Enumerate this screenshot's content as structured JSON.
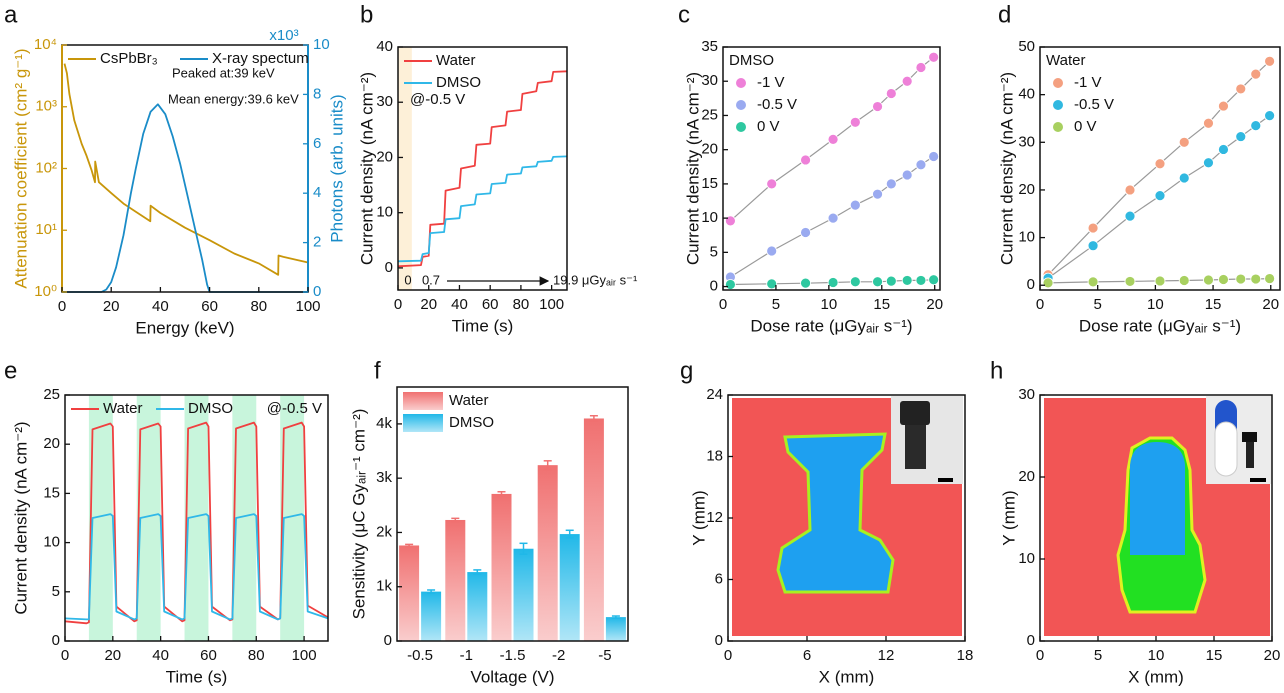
{
  "chart_data": [
    {
      "label": "a",
      "type": "line",
      "xlabel": "Energy (keV)",
      "ylabel": "Attenuation coefficient (cm² g⁻¹)",
      "y2label": "Photons (arb. units)",
      "annotations": [
        "x10³",
        "Peaked at:39 keV",
        "Mean energy:39.6 keV"
      ],
      "xlim": [
        0,
        100
      ],
      "xticks": [
        0,
        20,
        40,
        60,
        80,
        100
      ],
      "ylim": [
        1,
        10000
      ],
      "yscale": "log",
      "yticks": [
        {
          "value": 1,
          "label": "10⁰"
        },
        {
          "value": 10,
          "label": "10¹"
        },
        {
          "value": 100,
          "label": "10²"
        },
        {
          "value": 1000,
          "label": "10³"
        },
        {
          "value": 10000,
          "label": "10⁴"
        }
      ],
      "y2lim": [
        0,
        10
      ],
      "y2ticks": [
        0,
        2,
        4,
        6,
        8,
        10
      ],
      "legend": "upper left",
      "legend_columns": 2,
      "series": [
        {
          "name": "CsPbBr₃",
          "color": "#c8960a",
          "x": [
            1,
            2,
            3,
            5,
            8,
            10,
            12,
            13.4,
            13.5,
            15,
            20,
            25,
            30,
            35.9,
            36,
            40,
            50,
            60,
            70,
            80,
            87.9,
            88,
            90,
            100
          ],
          "values": [
            5000,
            3500,
            1600,
            600,
            250,
            160,
            95,
            60,
            130,
            60,
            40,
            27,
            20,
            14,
            25,
            19,
            11,
            6.9,
            4.2,
            2.9,
            1.9,
            3.9,
            3.7,
            3.0
          ]
        },
        {
          "name": "X-ray spectum",
          "color": "#1a8cc8",
          "axis": "y2",
          "x": [
            0,
            16,
            18,
            20,
            22,
            25,
            28,
            30,
            33,
            36,
            39,
            42,
            45,
            48,
            51,
            54,
            57,
            59,
            60,
            100
          ],
          "values": [
            0,
            0,
            0.1,
            0.4,
            1.0,
            2.3,
            4.0,
            5.0,
            6.4,
            7.3,
            7.6,
            7.2,
            6.3,
            5.2,
            3.9,
            2.6,
            1.3,
            0.3,
            0,
            0
          ]
        }
      ]
    },
    {
      "label": "b",
      "type": "line",
      "xlabel": "Time (s)",
      "ylabel": "Current density (nA cm⁻²)",
      "annotations": [
        "@-0.5 V",
        "0",
        "0.7",
        "19.9 μGyₐᵢᵣ s⁻¹"
      ],
      "xlim": [
        0,
        110
      ],
      "xticks": [
        0,
        20,
        40,
        60,
        80,
        100
      ],
      "ylim": [
        -4,
        40
      ],
      "yticks": [
        0,
        10,
        20,
        30,
        40
      ],
      "shaded": [
        [
          0,
          9
        ]
      ],
      "shade_color": "#fdf0d8",
      "legend": "upper left",
      "x": [
        0,
        15,
        16,
        20,
        21,
        30,
        31,
        40,
        41,
        50,
        51,
        60,
        61,
        70,
        71,
        80,
        81,
        90,
        91,
        100,
        101,
        110
      ],
      "series": [
        {
          "name": "Water",
          "color": "#f04040",
          "values": [
            0.3,
            0.5,
            2.0,
            2.2,
            7.8,
            8.0,
            14.0,
            14.5,
            18.0,
            18.5,
            22.3,
            22.5,
            25.5,
            25.8,
            28.3,
            28.6,
            31.5,
            32.0,
            33.5,
            33.8,
            35.5,
            35.6
          ]
        },
        {
          "name": "DMSO",
          "color": "#30b8e8",
          "values": [
            1.2,
            1.3,
            2.5,
            2.7,
            6.3,
            6.5,
            8.8,
            9.0,
            11.2,
            11.5,
            13.3,
            13.5,
            15.2,
            15.4,
            16.9,
            17.1,
            18.2,
            18.4,
            19.2,
            19.4,
            20.1,
            20.2
          ]
        }
      ]
    },
    {
      "label": "c",
      "type": "scatter",
      "xlabel": "Dose rate (μGyₐᵢᵣ s⁻¹)",
      "ylabel": "Current density (nA cm⁻²)",
      "xlim": [
        0,
        20.5
      ],
      "xticks": [
        0,
        5,
        10,
        15,
        20
      ],
      "ylim": [
        -0.5,
        35
      ],
      "yticks": [
        0,
        5,
        10,
        15,
        20,
        25,
        30,
        35
      ],
      "legend": "upper left",
      "legend_title": "DMSO",
      "fit_line": true,
      "fit_color": "#9a9a9a",
      "x": [
        0.7,
        4.6,
        7.8,
        10.4,
        12.5,
        14.6,
        15.9,
        17.4,
        18.7,
        19.9
      ],
      "series": [
        {
          "name": "-1 V",
          "color": "#ee80d8",
          "values": [
            9.6,
            15.0,
            18.5,
            21.5,
            24.0,
            26.3,
            28.2,
            30.0,
            32.0,
            33.5
          ]
        },
        {
          "name": "-0.5 V",
          "color": "#9aaaf0",
          "values": [
            1.4,
            5.2,
            7.9,
            10.0,
            11.9,
            13.5,
            15.0,
            16.3,
            17.8,
            19.0
          ]
        },
        {
          "name": "0 V",
          "color": "#2ec8a0",
          "values": [
            0.3,
            0.4,
            0.5,
            0.6,
            0.7,
            0.7,
            0.8,
            0.9,
            0.9,
            1.0
          ]
        }
      ]
    },
    {
      "label": "d",
      "type": "scatter",
      "xlabel": "Dose rate (μGyₐᵢᵣ s⁻¹)",
      "ylabel": "Current density (nA cm⁻²)",
      "xlim": [
        0,
        20.8
      ],
      "xticks": [
        0,
        5,
        10,
        15,
        20
      ],
      "ylim": [
        -1,
        50
      ],
      "yticks": [
        0,
        10,
        20,
        30,
        40,
        50
      ],
      "legend": "upper left",
      "legend_title": "Water",
      "fit_line": true,
      "fit_color": "#9a9a9a",
      "x": [
        0.7,
        4.6,
        7.8,
        10.4,
        12.5,
        14.6,
        15.9,
        17.4,
        18.7,
        19.9
      ],
      "series": [
        {
          "name": "-1 V",
          "color": "#f4a080",
          "values": [
            2.2,
            12.0,
            20.0,
            25.5,
            30.0,
            34.0,
            37.6,
            41.2,
            44.3,
            47.0
          ]
        },
        {
          "name": "-0.5 V",
          "color": "#30b8e0",
          "values": [
            1.5,
            8.3,
            14.5,
            18.8,
            22.5,
            25.7,
            28.5,
            31.2,
            33.5,
            35.6
          ]
        },
        {
          "name": "0 V",
          "color": "#a8d060",
          "values": [
            0.5,
            0.7,
            0.8,
            0.9,
            1.0,
            1.1,
            1.2,
            1.3,
            1.3,
            1.4
          ]
        }
      ]
    },
    {
      "label": "e",
      "type": "line",
      "xlabel": "Time (s)",
      "ylabel": "Current density (nA cm⁻²)",
      "annotations": [
        "@-0.5 V"
      ],
      "xlim": [
        0,
        110
      ],
      "xticks": [
        0,
        20,
        40,
        60,
        80,
        100
      ],
      "ylim": [
        0,
        25
      ],
      "yticks": [
        0,
        5,
        10,
        15,
        20,
        25
      ],
      "shaded": [
        [
          10,
          20
        ],
        [
          30,
          40
        ],
        [
          50,
          60
        ],
        [
          70,
          80
        ],
        [
          90,
          100
        ]
      ],
      "shade_color": "#c8f5dc",
      "legend": "upper left",
      "legend_columns": 2,
      "x": [
        0,
        9,
        10,
        11.5,
        19,
        20,
        21.5,
        29,
        30,
        31.5,
        39,
        40,
        41.5,
        49,
        50,
        51.5,
        59,
        60,
        61.5,
        69,
        70,
        71.5,
        79,
        80,
        81.5,
        89,
        90,
        91.5,
        99,
        100,
        101.5,
        110
      ],
      "series": [
        {
          "name": "Water",
          "color": "#f04040",
          "values": [
            2.0,
            1.8,
            1.9,
            21.5,
            22.1,
            21.8,
            3.5,
            2.0,
            2.1,
            21.5,
            22.1,
            21.8,
            3.5,
            2.0,
            2.1,
            21.6,
            22.2,
            21.8,
            3.5,
            2.1,
            2.2,
            21.6,
            22.2,
            21.8,
            3.5,
            2.2,
            2.3,
            21.6,
            22.2,
            21.8,
            3.6,
            2.4
          ]
        },
        {
          "name": "DMSO",
          "color": "#30b8e8",
          "values": [
            2.3,
            2.2,
            2.2,
            12.5,
            12.9,
            12.7,
            3.0,
            2.2,
            2.3,
            12.5,
            12.9,
            12.7,
            3.0,
            2.2,
            2.3,
            12.5,
            12.9,
            12.7,
            3.0,
            2.2,
            2.3,
            12.5,
            12.9,
            12.7,
            3.0,
            2.2,
            2.3,
            12.5,
            12.9,
            12.7,
            3.0,
            2.3
          ]
        }
      ]
    },
    {
      "label": "f",
      "type": "bar",
      "xlabel": "Voltage (V)",
      "ylabel": "Sensitivity (μC Gyₐᵢᵣ⁻¹ cm⁻²)",
      "categories": [
        "-0.5",
        "-1",
        "-1.5",
        "-2",
        "-5"
      ],
      "ylim": [
        0,
        4680
      ],
      "yticks": [
        0,
        {
          "value": 1000,
          "label": "1k"
        },
        {
          "value": 2000,
          "label": "2k"
        },
        {
          "value": 3000,
          "label": "3k"
        },
        {
          "value": 4000,
          "label": "4k"
        }
      ],
      "legend": "upper left",
      "series": [
        {
          "name": "Water",
          "color": "#f07070",
          "values": [
            1760,
            2230,
            2710,
            3240,
            4100
          ],
          "errors": [
            20,
            30,
            40,
            80,
            50
          ]
        },
        {
          "name": "DMSO",
          "color": "#20b8e8",
          "values": [
            910,
            1270,
            1700,
            1970,
            440
          ],
          "errors": [
            30,
            40,
            100,
            70,
            20
          ]
        }
      ]
    },
    {
      "label": "g",
      "type": "image",
      "xlabel": "X (mm)",
      "ylabel": "Y (mm)",
      "xlim": [
        0,
        18
      ],
      "xticks": [
        0,
        6,
        12,
        18
      ],
      "ylim": [
        0,
        24
      ],
      "yticks": [
        0,
        6,
        12,
        18,
        24
      ]
    },
    {
      "label": "h",
      "type": "image",
      "xlabel": "X (mm)",
      "ylabel": "Y (mm)",
      "xlim": [
        0,
        20
      ],
      "xticks": [
        0,
        5,
        10,
        15,
        20
      ],
      "ylim": [
        0,
        30
      ],
      "yticks": [
        0,
        10,
        20,
        30
      ]
    }
  ]
}
